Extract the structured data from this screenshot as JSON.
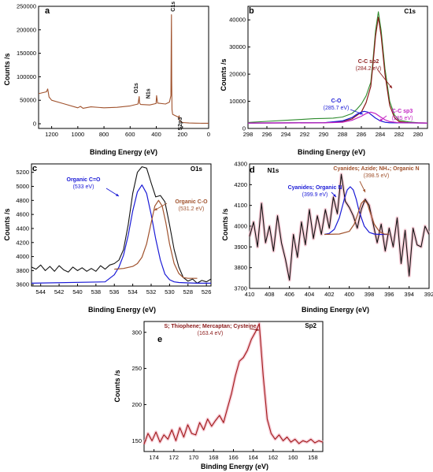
{
  "colors": {
    "black": "#111111",
    "brown": "#a0522d",
    "dark_red": "#8b1a1a",
    "blue": "#1a1ad6",
    "magenta": "#c21fc2",
    "green": "#2e8b2e",
    "olive": "#6b6b00",
    "pink_halo": "#f2b8c6"
  },
  "chart_data": [
    {
      "id": "a",
      "type": "line",
      "panel_label": "a",
      "title": "",
      "xlabel": "Binding Energy (eV)",
      "ylabel": "Counts /s",
      "xlim": [
        1300,
        0
      ],
      "ylim": [
        -10000,
        250000
      ],
      "xticks": [
        1200,
        1000,
        800,
        600,
        400,
        200,
        0
      ],
      "yticks": [
        0,
        50000,
        100000,
        150000,
        200000,
        250000
      ],
      "series": [
        {
          "color": "#a0522d",
          "x": [
            1300,
            1240,
            1230,
            1220,
            1200,
            1100,
            1000,
            980,
            960,
            900,
            800,
            700,
            600,
            540,
            531,
            528,
            520,
            450,
            402,
            398,
            390,
            330,
            300,
            288,
            286,
            284,
            282,
            280,
            275,
            230,
            225,
            220,
            200,
            150,
            100,
            50,
            0
          ],
          "y": [
            64000,
            68000,
            74000,
            57000,
            50000,
            42000,
            34000,
            37000,
            33000,
            36000,
            34000,
            35000,
            38000,
            42000,
            58000,
            44000,
            41000,
            40000,
            43000,
            60000,
            44000,
            42000,
            46000,
            60000,
            175000,
            232000,
            90000,
            30000,
            20000,
            14000,
            17000,
            6000,
            2500,
            1500,
            1200,
            1000,
            1000
          ]
        }
      ],
      "annotations": [
        {
          "text": "C1s",
          "x": 283,
          "y": 232000,
          "color": "#111111"
        },
        {
          "text": "O1s",
          "x": 531,
          "y": 58000,
          "color": "#111111"
        },
        {
          "text": "N1s",
          "x": 400,
          "y": 50000,
          "color": "#111111"
        },
        {
          "text": "S2p3",
          "x": 230,
          "y": 16000,
          "color": "#111111"
        }
      ]
    },
    {
      "id": "b",
      "type": "line",
      "panel_label": "b",
      "title": "C1s",
      "xlabel": "Binding Energy (eV)",
      "ylabel": "Counts /s",
      "xlim": [
        298,
        279
      ],
      "ylim": [
        0,
        45000
      ],
      "xticks": [
        298,
        296,
        294,
        292,
        290,
        288,
        286,
        284,
        282,
        280
      ],
      "yticks": [
        0,
        10000,
        20000,
        30000,
        40000
      ],
      "series": [
        {
          "name": "",
          "color": "#2e8b2e",
          "x": [
            298,
            296,
            294,
            292,
            291,
            290,
            289,
            288,
            287,
            286.5,
            286,
            285.5,
            285,
            284.8,
            284.5,
            284.2,
            283.9,
            283.5,
            283,
            282.5,
            282,
            281,
            280,
            279
          ],
          "y": [
            2200,
            2600,
            3000,
            3400,
            3600,
            3700,
            3800,
            4200,
            5500,
            7000,
            9000,
            12000,
            17000,
            24000,
            36000,
            43000,
            36000,
            22000,
            10000,
            5000,
            3000,
            2400,
            2100,
            2000
          ]
        },
        {
          "name": "C-C sp2",
          "color": "#8b1a1a",
          "x": [
            298,
            290,
            288,
            287,
            286,
            285.5,
            285,
            284.8,
            284.5,
            284.2,
            283.9,
            283.5,
            283,
            282.5,
            282,
            281,
            279
          ],
          "y": [
            2000,
            2100,
            2600,
            3500,
            6000,
            9500,
            15500,
            22500,
            34000,
            41000,
            34000,
            20000,
            8500,
            4000,
            2500,
            2100,
            2000
          ]
        },
        {
          "name": "C-O",
          "color": "#1a1ad6",
          "x": [
            298,
            290,
            288,
            287,
            286.5,
            286,
            285.7,
            285.3,
            285,
            284.5,
            284,
            283.5,
            283,
            279
          ],
          "y": [
            2000,
            2100,
            2800,
            4000,
            5200,
            6000,
            6300,
            6000,
            5200,
            3800,
            2800,
            2300,
            2100,
            2000
          ]
        },
        {
          "name": "C-C sp3",
          "color": "#c21fc2",
          "x": [
            298,
            290,
            288,
            287,
            286,
            285.5,
            285,
            284.5,
            284,
            283.5,
            283,
            282,
            279
          ],
          "y": [
            2000,
            2050,
            2300,
            3000,
            4500,
            5500,
            6000,
            5500,
            4300,
            3200,
            2500,
            2100,
            2000
          ]
        }
      ],
      "annotations": [
        {
          "text": "C-C sp2",
          "text2": "(284.2 eV)",
          "color": "#8b1a1a"
        },
        {
          "text": "C-O",
          "text2": "(285.7 eV)",
          "color": "#1a1ad6"
        },
        {
          "text": "C-C sp3",
          "text2": "(285 eV)",
          "color": "#c21fc2"
        }
      ]
    },
    {
      "id": "c",
      "type": "line",
      "panel_label": "c",
      "title": "O1s",
      "xlabel": "Binding Energy (eV)",
      "ylabel": "Counts /s",
      "xlim": [
        545,
        525.5
      ],
      "ylim": [
        3580,
        5320
      ],
      "xticks": [
        544,
        542,
        540,
        538,
        536,
        534,
        532,
        530,
        528,
        526
      ],
      "yticks": [
        3600,
        3800,
        4000,
        4200,
        4400,
        4600,
        4800,
        5000,
        5200
      ],
      "series": [
        {
          "name": "",
          "color": "#111111",
          "x": [
            545,
            544.5,
            544,
            543.5,
            543,
            542.5,
            542,
            541.5,
            541,
            540.5,
            540,
            539.5,
            539,
            538.5,
            538,
            537.5,
            537,
            536.5,
            536,
            535.5,
            535,
            534.5,
            534,
            533.5,
            533,
            532.5,
            532,
            531.5,
            531,
            530.5,
            530,
            529.5,
            529,
            528.5,
            528,
            527.5,
            527,
            526.5,
            526,
            525.5
          ],
          "y": [
            3850,
            3820,
            3880,
            3800,
            3860,
            3790,
            3870,
            3810,
            3780,
            3850,
            3800,
            3840,
            3790,
            3830,
            3790,
            3870,
            3820,
            3880,
            3900,
            3950,
            4100,
            4450,
            4900,
            5200,
            5280,
            5260,
            5050,
            4850,
            4870,
            4780,
            4450,
            4100,
            3850,
            3700,
            3650,
            3680,
            3620,
            3660,
            3640,
            3680
          ]
        },
        {
          "name": "Organic C=O",
          "color": "#1a1ad6",
          "x": [
            545,
            537,
            536,
            535.5,
            535,
            534.5,
            534,
            533.5,
            533,
            532.5,
            532,
            531.5,
            531,
            530.5,
            530,
            529.5,
            529,
            528,
            527,
            525.5
          ],
          "y": [
            3620,
            3640,
            3740,
            3850,
            4020,
            4300,
            4650,
            4920,
            5020,
            4900,
            4600,
            4250,
            3950,
            3750,
            3670,
            3640,
            3630,
            3625,
            3620,
            3620
          ]
        },
        {
          "name": "Organic C-O",
          "color": "#a0522d",
          "x": [
            536,
            535,
            534,
            533.5,
            533,
            532.5,
            532,
            531.6,
            531.2,
            530.8,
            530.4,
            530,
            529.5,
            529,
            528.5,
            528,
            527
          ],
          "y": [
            3820,
            3830,
            3860,
            3900,
            3990,
            4180,
            4480,
            4720,
            4800,
            4720,
            4480,
            4180,
            3900,
            3760,
            3700,
            3690,
            3690
          ]
        }
      ],
      "annotations": [
        {
          "text": "Organic C=O",
          "text2": "(533 eV)",
          "color": "#1a1ad6"
        },
        {
          "text": "Organic C-O",
          "text2": "(531.2 eV)",
          "color": "#a0522d"
        }
      ]
    },
    {
      "id": "d",
      "type": "line",
      "panel_label": "d",
      "title": "N1s",
      "xlabel": "Binding Energy (eV)",
      "ylabel": "Counts /s",
      "xlim": [
        410,
        392
      ],
      "ylim": [
        3700,
        4300
      ],
      "xticks": [
        410,
        408,
        406,
        404,
        402,
        400,
        398,
        396,
        394,
        392
      ],
      "yticks": [
        3700,
        3800,
        3900,
        4000,
        4100,
        4200,
        4300
      ],
      "series": [
        {
          "name": "",
          "color": "#111111",
          "x": [
            410,
            409.6,
            409.2,
            408.8,
            408.4,
            408,
            407.6,
            407.2,
            406.8,
            406.4,
            406,
            405.6,
            405.2,
            404.8,
            404.4,
            404,
            403.6,
            403.2,
            402.8,
            402.4,
            402,
            401.6,
            401.2,
            400.8,
            400.4,
            400,
            399.6,
            399.2,
            398.8,
            398.4,
            398,
            397.6,
            397.2,
            396.8,
            396.4,
            396,
            395.6,
            395.2,
            394.8,
            394.4,
            394,
            393.6,
            393.2,
            392.8,
            392.4,
            392
          ],
          "y": [
            3950,
            4020,
            3900,
            4110,
            3920,
            4000,
            3880,
            4050,
            3920,
            3840,
            3740,
            3960,
            3850,
            4020,
            3910,
            4080,
            3940,
            4050,
            3960,
            4080,
            3990,
            4140,
            4060,
            4250,
            4120,
            4090,
            4050,
            3990,
            4080,
            4130,
            4100,
            4010,
            3920,
            4010,
            3880,
            3990,
            3900,
            4040,
            3820,
            3980,
            3760,
            3990,
            3910,
            3900,
            4000,
            3960
          ]
        },
        {
          "name": "Cyanides; Organic N",
          "color": "#1a1ad6",
          "x": [
            402.5,
            402,
            401.5,
            401,
            400.5,
            400.2,
            399.9,
            399.6,
            399.3,
            399,
            398.5,
            398,
            397.5,
            397,
            396.5,
            396
          ],
          "y": [
            3960,
            3965,
            3985,
            4040,
            4130,
            4175,
            4190,
            4175,
            4130,
            4070,
            4000,
            3970,
            3962,
            3960,
            3960,
            3960
          ]
        },
        {
          "name": "Cyanides; Azide; NH3; Organic N",
          "color": "#a0522d",
          "x": [
            402.5,
            401,
            400,
            399.5,
            399,
            398.8,
            398.5,
            398.2,
            398,
            397.5,
            397,
            396.5,
            396
          ],
          "y": [
            3960,
            3962,
            3975,
            4010,
            4080,
            4110,
            4125,
            4110,
            4080,
            4010,
            3975,
            3962,
            3960
          ]
        }
      ],
      "annotations": [
        {
          "text": "Cyanides; Organic N",
          "text2": "(399.9 eV)",
          "color": "#1a1ad6"
        },
        {
          "text": "Cyanides; Azide; NH₃; Organic N",
          "text2": "(398.5 eV)",
          "color": "#a0522d"
        }
      ]
    },
    {
      "id": "e",
      "type": "line",
      "panel_label": "e",
      "title": "Sp2",
      "xlabel": "Binding Energy (eV)",
      "ylabel": "Counts /s",
      "xlim": [
        175,
        157
      ],
      "ylim": [
        135,
        315
      ],
      "xticks": [
        174,
        172,
        170,
        168,
        166,
        164,
        162,
        160,
        158
      ],
      "yticks": [
        150,
        200,
        250,
        300
      ],
      "series": [
        {
          "name": "",
          "color": "#a01818",
          "x": [
            175,
            174.6,
            174.2,
            173.8,
            173.4,
            173,
            172.6,
            172.2,
            171.8,
            171.4,
            171,
            170.6,
            170.2,
            169.8,
            169.4,
            169,
            168.6,
            168.2,
            167.8,
            167.4,
            167,
            166.6,
            166.2,
            165.8,
            165.4,
            165,
            164.6,
            164.2,
            163.8,
            163.4,
            163,
            162.6,
            162.2,
            161.8,
            161.4,
            161,
            160.6,
            160.2,
            159.8,
            159.4,
            159,
            158.6,
            158.2,
            157.8,
            157.4,
            157
          ],
          "y": [
            145,
            160,
            150,
            162,
            148,
            158,
            152,
            165,
            150,
            168,
            155,
            172,
            160,
            158,
            175,
            165,
            180,
            170,
            178,
            185,
            175,
            195,
            215,
            240,
            260,
            265,
            275,
            290,
            300,
            312,
            240,
            180,
            160,
            152,
            158,
            150,
            155,
            148,
            152,
            146,
            150,
            148,
            152,
            147,
            150,
            148
          ]
        }
      ],
      "annotations": [
        {
          "text": "S; Thiophene; Mercaptan; Cysteine",
          "text2": "(163.4 eV)",
          "color": "#8b1a1a"
        }
      ]
    }
  ]
}
